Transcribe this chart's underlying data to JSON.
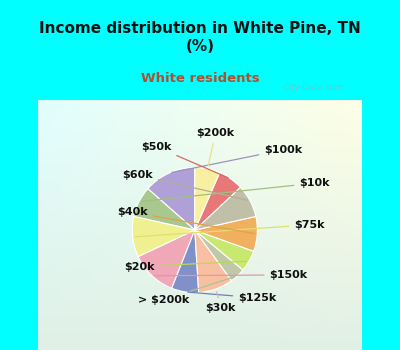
{
  "title": "Income distribution in White Pine, TN\n(%)",
  "subtitle": "White residents",
  "title_color": "#111111",
  "subtitle_color": "#b05030",
  "background_color": "#00ffff",
  "watermark": "City-Data.com",
  "labels": [
    "$100k",
    "$10k",
    "$75k",
    "$150k",
    "$125k",
    "$30k",
    "> $200k",
    "$20k",
    "$40k",
    "$60k",
    "$50k",
    "$200k"
  ],
  "values": [
    13.5,
    8.0,
    10.5,
    12.0,
    7.0,
    9.0,
    4.0,
    5.5,
    9.0,
    8.5,
    6.5,
    6.5
  ],
  "colors": [
    "#b0a0d8",
    "#a8c890",
    "#f0f090",
    "#f0a8b8",
    "#8090c8",
    "#f8c0a0",
    "#c0c8a8",
    "#c8e870",
    "#f0b060",
    "#c0c0a8",
    "#e87878",
    "#f8f0a0"
  ],
  "label_font_size": 8,
  "label_color": "#111111",
  "startangle": 90,
  "line_colors": [
    "#a090c0",
    "#a0c080",
    "#e0e070",
    "#e098a8",
    "#7080b8",
    "#f0b090",
    "#b0c098",
    "#b8d860",
    "#e0a050",
    "#b0b098",
    "#d86868",
    "#e8e090"
  ]
}
